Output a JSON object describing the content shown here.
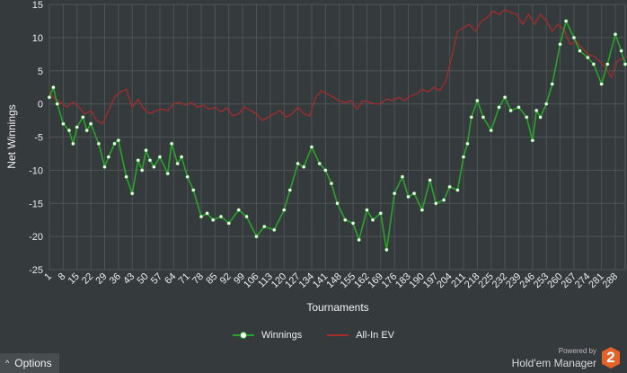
{
  "chart_data": {
    "type": "line",
    "title": "",
    "xlabel": "Tournaments",
    "ylabel": "Net Winnings",
    "ylim": [
      -25,
      15
    ],
    "yticks": [
      15,
      10,
      5,
      0,
      -5,
      -10,
      -15,
      -20,
      -25
    ],
    "xlim": [
      1,
      293
    ],
    "xticks": [
      1,
      8,
      15,
      22,
      29,
      36,
      43,
      50,
      57,
      64,
      71,
      78,
      85,
      92,
      99,
      106,
      113,
      120,
      127,
      134,
      141,
      148,
      155,
      162,
      169,
      176,
      183,
      190,
      197,
      204,
      211,
      218,
      225,
      232,
      239,
      246,
      253,
      260,
      267,
      274,
      281,
      288
    ],
    "grid": true,
    "legend_position": "bottom-center",
    "series": [
      {
        "name": "Winnings",
        "color": "#2aa32a",
        "marker_color": "#ffffff",
        "x": [
          1,
          3,
          5,
          8,
          11,
          13,
          15,
          18,
          20,
          22,
          26,
          29,
          31,
          34,
          36,
          40,
          43,
          46,
          48,
          50,
          52,
          54,
          57,
          61,
          63,
          66,
          68,
          71,
          74,
          78,
          81,
          84,
          88,
          92,
          97,
          101,
          106,
          110,
          115,
          120,
          123,
          127,
          130,
          134,
          138,
          141,
          144,
          147,
          151,
          155,
          158,
          162,
          165,
          169,
          172,
          176,
          180,
          183,
          186,
          190,
          194,
          197,
          201,
          204,
          208,
          211,
          213,
          215,
          218,
          221,
          225,
          229,
          232,
          235,
          239,
          243,
          246,
          248,
          250,
          253,
          256,
          260,
          263,
          267,
          270,
          274,
          277,
          281,
          284,
          288,
          291,
          293
        ],
        "y": [
          1,
          2.5,
          0,
          -3,
          -4,
          -6,
          -3.5,
          -2,
          -4,
          -3,
          -6,
          -9.5,
          -8,
          -6,
          -5.5,
          -11,
          -13.5,
          -8.5,
          -10,
          -7,
          -8.5,
          -9.5,
          -8,
          -10.5,
          -6,
          -9,
          -8,
          -11,
          -13,
          -17,
          -16.5,
          -17.5,
          -17,
          -18,
          -16,
          -17,
          -20,
          -18.5,
          -19,
          -16,
          -13,
          -9,
          -9.5,
          -6.5,
          -9,
          -10,
          -12,
          -15,
          -17.5,
          -18,
          -20.5,
          -16,
          -17.5,
          -16.5,
          -22,
          -13.5,
          -11,
          -14,
          -13.5,
          -16,
          -11.5,
          -15,
          -14.5,
          -12.5,
          -13,
          -8,
          -6,
          -2,
          0.5,
          -2,
          -4,
          -0.5,
          1,
          -1,
          -0.5,
          -2,
          -5.5,
          -1,
          -2,
          0,
          3,
          9,
          12.5,
          10,
          8,
          7,
          6,
          3,
          6,
          10.5,
          8,
          6
        ]
      },
      {
        "name": "All-In EV",
        "color": "#a52c2c",
        "x": [
          1,
          4,
          7,
          10,
          13,
          16,
          19,
          22,
          25,
          28,
          31,
          34,
          37,
          40,
          43,
          46,
          49,
          52,
          55,
          58,
          61,
          64,
          67,
          70,
          73,
          76,
          79,
          82,
          85,
          88,
          91,
          94,
          97,
          100,
          103,
          106,
          109,
          112,
          115,
          118,
          121,
          124,
          127,
          130,
          133,
          136,
          139,
          142,
          145,
          148,
          151,
          154,
          157,
          160,
          163,
          166,
          169,
          172,
          175,
          178,
          181,
          184,
          187,
          190,
          193,
          196,
          199,
          202,
          205,
          208,
          211,
          214,
          217,
          220,
          223,
          226,
          229,
          232,
          235,
          238,
          241,
          244,
          247,
          250,
          253,
          256,
          259,
          262,
          265,
          268,
          271,
          274,
          277,
          280,
          283,
          286,
          289,
          293
        ],
        "y": [
          1.8,
          0.7,
          0.2,
          -0.5,
          0.3,
          -0.5,
          -1.5,
          -1,
          -2.5,
          -3,
          -1,
          1,
          1.8,
          2.2,
          -0.5,
          0.7,
          -0.8,
          -1.5,
          -1,
          -0.8,
          -1,
          0,
          0.3,
          -0.2,
          0.2,
          -0.5,
          -0.2,
          -0.8,
          -0.5,
          -1.2,
          -0.6,
          -1.8,
          -1.5,
          -0.5,
          -1,
          -1.5,
          -2.5,
          -2,
          -1.5,
          -1,
          -2,
          -1.5,
          -0.5,
          -1.5,
          -1.8,
          1,
          2,
          1.5,
          1,
          0.5,
          0.2,
          0.5,
          -0.8,
          0.5,
          0.3,
          0,
          0,
          0.8,
          0.5,
          1,
          0.5,
          1.2,
          1.5,
          2.2,
          1.8,
          2.5,
          2,
          3.5,
          7,
          11,
          11.5,
          12,
          11,
          12.5,
          13,
          14,
          13.5,
          14.2,
          13.8,
          13.5,
          12,
          13.5,
          12,
          13.5,
          12.5,
          11,
          12,
          11.2,
          9,
          9.5,
          8.5,
          7.5,
          7.2,
          6.5,
          5.5,
          4,
          6.5,
          7
        ]
      }
    ]
  },
  "footer": {
    "options_label": "Options",
    "options_caret": "^",
    "powered_by": "Powered by",
    "brand_name": "Hold'em Manager",
    "brand_logo_text": "2"
  }
}
